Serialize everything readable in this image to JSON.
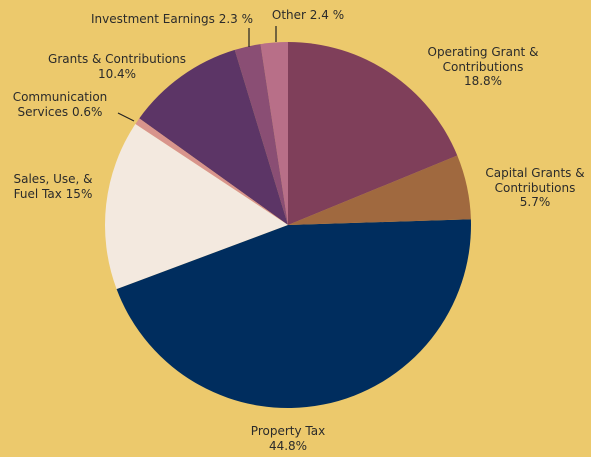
{
  "chart_data": {
    "type": "pie",
    "categories": [
      "Operating Grant & Contributions",
      "Capital Grants & Contributions",
      "Property Tax",
      "Sales, Use,  & Fuel Tax",
      "Communication Services",
      "Grants & Contributions",
      "Investment Earnings",
      "Other"
    ],
    "values": [
      18.8,
      5.7,
      44.8,
      15,
      0.6,
      10.4,
      2.3,
      2.4
    ],
    "value_labels": [
      "18.8%",
      "5.7%",
      "44.8%",
      "15%",
      "0.6%",
      "10.4%",
      "2.3 %",
      "2.4 %"
    ],
    "colors": [
      "#7f3f5a",
      "#a0693f",
      "#002d5e",
      "#f3e9df",
      "#d8948c",
      "#5c3566",
      "#8a4e74",
      "#b86f88"
    ]
  }
}
